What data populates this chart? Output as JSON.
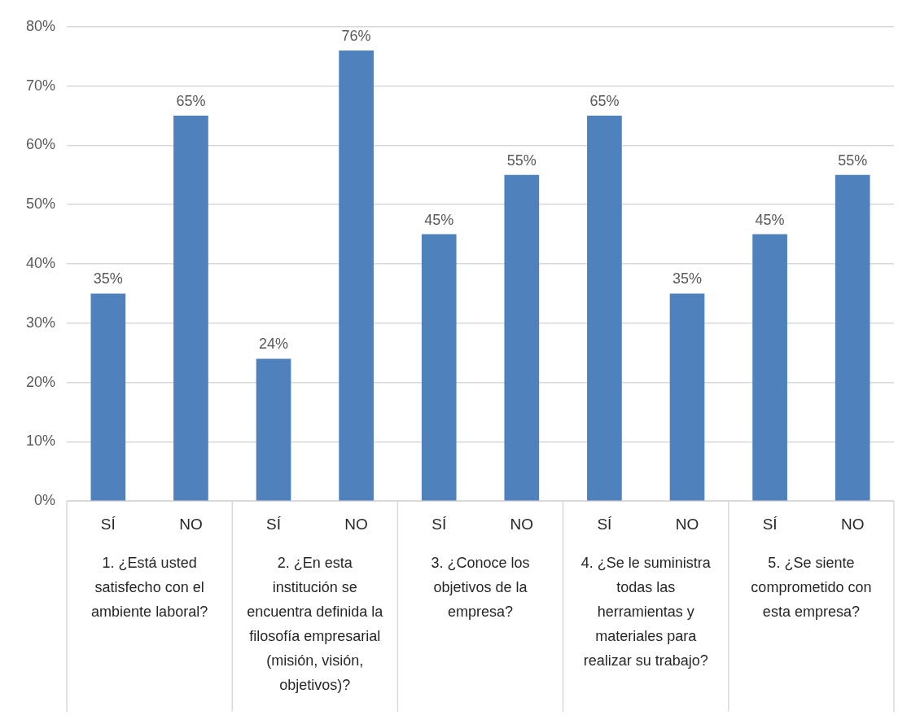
{
  "chart_data": {
    "type": "bar",
    "categories": [
      "SÍ",
      "NO",
      "SÍ",
      "NO",
      "SÍ",
      "NO",
      "SÍ",
      "NO",
      "SÍ",
      "NO"
    ],
    "values": [
      35,
      65,
      24,
      76,
      45,
      55,
      65,
      35,
      45,
      55
    ],
    "value_labels": [
      "35%",
      "65%",
      "24%",
      "76%",
      "45%",
      "55%",
      "65%",
      "35%",
      "45%",
      "55%"
    ],
    "color": "#4f81bd",
    "ylim": [
      0,
      80
    ],
    "yticks": [
      {
        "value": 0,
        "label": "0%"
      },
      {
        "value": 10,
        "label": "10%"
      },
      {
        "value": 20,
        "label": "20%"
      },
      {
        "value": 30,
        "label": "30%"
      },
      {
        "value": 40,
        "label": "40%"
      },
      {
        "value": 50,
        "label": "50%"
      },
      {
        "value": 60,
        "label": "60%"
      },
      {
        "value": 70,
        "label": "70%"
      },
      {
        "value": 80,
        "label": "80%"
      }
    ],
    "grid": "y",
    "legend": false,
    "annotations": [
      "1. ¿Está usted satisfecho con el ambiente laboral?",
      "2. ¿En esta institución se encuentra definida la filosofía empresarial (misión, visión, objetivos)?",
      "3. ¿Conoce los objetivos de la empresa?",
      "4. ¿Se le suministra todas las herramientas y materiales para realizar su trabajo?",
      "5. ¿Se siente comprometido con esta empresa?"
    ]
  }
}
